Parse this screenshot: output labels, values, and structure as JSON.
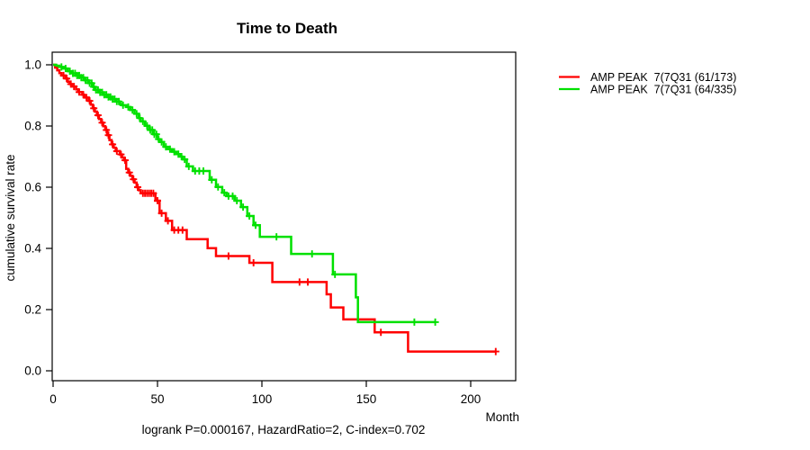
{
  "title": "Time to Death",
  "y_axis": {
    "label": "cumulative survival rate",
    "ticks": [
      "0.0",
      "0.2",
      "0.4",
      "0.6",
      "0.8",
      "1.0"
    ]
  },
  "x_axis": {
    "label": "Month",
    "ticks": [
      "0",
      "50",
      "100",
      "150",
      "200"
    ]
  },
  "caption": "logrank P=0.000167, HazardRatio=2, C-index=0.702",
  "legend": [
    {
      "label": "AMP PEAK  7(7Q31 (61/173)",
      "color": "#ff0000"
    },
    {
      "label": "AMP PEAK  7(7Q31 (64/335)",
      "color": "#00e000"
    }
  ],
  "chart_data": {
    "type": "line",
    "subtype": "kaplan-meier-step",
    "title": "Time to Death",
    "xlabel": "Month",
    "ylabel": "cumulative survival rate",
    "xlim": [
      0,
      221
    ],
    "ylim": [
      0,
      1.04
    ],
    "x_ticks": [
      0,
      50,
      100,
      150,
      200
    ],
    "y_ticks": [
      0.0,
      0.2,
      0.4,
      0.6,
      0.8,
      1.0
    ],
    "grid": false,
    "legend_position": "right-outside",
    "series": [
      {
        "name": "AMP PEAK  7(7Q31 (61/173)",
        "color": "#ff0000",
        "n_events": "61/173",
        "end_month": 212,
        "steps": [
          [
            0,
            1.0
          ],
          [
            1,
            0.991
          ],
          [
            2,
            0.982
          ],
          [
            3,
            0.973
          ],
          [
            4,
            0.965
          ],
          [
            6,
            0.955
          ],
          [
            7,
            0.945
          ],
          [
            8,
            0.937
          ],
          [
            9,
            0.929
          ],
          [
            11,
            0.92
          ],
          [
            12,
            0.911
          ],
          [
            14,
            0.902
          ],
          [
            15,
            0.893
          ],
          [
            17,
            0.882
          ],
          [
            18,
            0.87
          ],
          [
            19,
            0.858
          ],
          [
            20,
            0.847
          ],
          [
            21,
            0.835
          ],
          [
            22,
            0.823
          ],
          [
            23,
            0.811
          ],
          [
            24,
            0.799
          ],
          [
            25,
            0.787
          ],
          [
            26,
            0.77
          ],
          [
            27,
            0.754
          ],
          [
            28,
            0.74
          ],
          [
            29,
            0.729
          ],
          [
            30,
            0.718
          ],
          [
            32,
            0.707
          ],
          [
            33,
            0.697
          ],
          [
            34,
            0.688
          ],
          [
            35,
            0.66
          ],
          [
            36,
            0.648
          ],
          [
            37,
            0.637
          ],
          [
            38,
            0.626
          ],
          [
            39,
            0.615
          ],
          [
            40,
            0.6
          ],
          [
            41,
            0.59
          ],
          [
            42,
            0.58
          ],
          [
            49,
            0.556
          ],
          [
            51,
            0.515
          ],
          [
            54,
            0.49
          ],
          [
            57,
            0.46
          ],
          [
            64,
            0.43
          ],
          [
            74,
            0.401
          ],
          [
            78,
            0.375
          ],
          [
            94,
            0.353
          ],
          [
            105,
            0.29
          ],
          [
            131,
            0.25
          ],
          [
            133,
            0.207
          ],
          [
            139,
            0.168
          ],
          [
            154,
            0.126
          ],
          [
            170,
            0.063
          ]
        ],
        "censor_marks": [
          5,
          6.5,
          8.5,
          10,
          12.5,
          14.5,
          16,
          17.5,
          19.5,
          21.5,
          23.5,
          25.5,
          26.5,
          28.5,
          30.5,
          32.5,
          34.5,
          36.5,
          38.5,
          40.5,
          43,
          44,
          45,
          46,
          47,
          48,
          50,
          52,
          55,
          58,
          60,
          62,
          84,
          96,
          118,
          122,
          157,
          212
        ]
      },
      {
        "name": "AMP PEAK  7(7Q31 (64/335)",
        "color": "#00e000",
        "n_events": "64/335",
        "end_month": 183,
        "steps": [
          [
            0,
            1.0
          ],
          [
            1.5,
            0.997
          ],
          [
            3,
            0.993
          ],
          [
            5,
            0.988
          ],
          [
            7,
            0.979
          ],
          [
            9,
            0.972
          ],
          [
            11,
            0.965
          ],
          [
            13,
            0.958
          ],
          [
            15,
            0.949
          ],
          [
            17,
            0.94
          ],
          [
            19,
            0.928
          ],
          [
            20,
            0.918
          ],
          [
            22,
            0.91
          ],
          [
            24,
            0.902
          ],
          [
            26,
            0.895
          ],
          [
            28,
            0.888
          ],
          [
            30,
            0.88
          ],
          [
            32,
            0.872
          ],
          [
            33,
            0.868
          ],
          [
            35,
            0.862
          ],
          [
            37,
            0.852
          ],
          [
            39,
            0.84
          ],
          [
            41,
            0.826
          ],
          [
            42,
            0.815
          ],
          [
            44,
            0.801
          ],
          [
            46,
            0.787
          ],
          [
            48,
            0.773
          ],
          [
            50,
            0.757
          ],
          [
            51,
            0.748
          ],
          [
            53,
            0.732
          ],
          [
            55,
            0.724
          ],
          [
            57,
            0.716
          ],
          [
            59,
            0.708
          ],
          [
            61,
            0.7
          ],
          [
            62,
            0.691
          ],
          [
            64,
            0.668
          ],
          [
            67,
            0.653
          ],
          [
            75,
            0.624
          ],
          [
            78,
            0.601
          ],
          [
            81,
            0.582
          ],
          [
            83,
            0.571
          ],
          [
            87,
            0.556
          ],
          [
            90,
            0.535
          ],
          [
            93,
            0.506
          ],
          [
            96,
            0.476
          ],
          [
            99,
            0.438
          ],
          [
            114,
            0.382
          ],
          [
            134,
            0.315
          ],
          [
            145,
            0.24
          ],
          [
            146,
            0.159
          ]
        ],
        "censor_marks": [
          4,
          6,
          8,
          9.5,
          10.5,
          11.5,
          12.5,
          13.5,
          14.5,
          15.5,
          16.5,
          17.5,
          18.5,
          19.5,
          20.5,
          21.5,
          22.5,
          23.5,
          24.5,
          25.5,
          26.5,
          27.5,
          28.5,
          29.5,
          30.5,
          31.5,
          33.5,
          36,
          38,
          40,
          41.5,
          43,
          45,
          46.5,
          47.5,
          48.5,
          49.5,
          50.5,
          52,
          54,
          56,
          58,
          60,
          61.5,
          63,
          65,
          68,
          70,
          72,
          76,
          79,
          82,
          84,
          86,
          88,
          91,
          94,
          97,
          107,
          124,
          135,
          173,
          183
        ]
      }
    ]
  }
}
